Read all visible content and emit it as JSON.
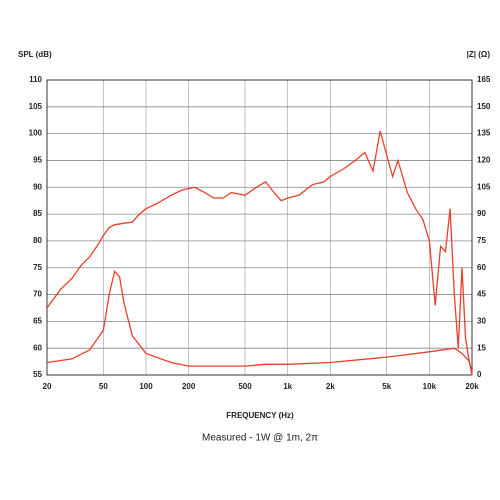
{
  "chart_data": {
    "type": "line",
    "ylabel": "SPL (dB)",
    "y2label": "|Z| (Ω)",
    "xlabel": "FREQUENCY (Hz)",
    "subtitle": "Measured - 1W @ 1m, 2π",
    "xlog": true,
    "grid": true,
    "xlim": [
      20,
      20000
    ],
    "xticks": [
      20,
      50,
      100,
      200,
      500,
      {
        "value": 1000,
        "label": "1k"
      },
      {
        "value": 2000,
        "label": "2k"
      },
      {
        "value": 5000,
        "label": "5k"
      },
      {
        "value": 10000,
        "label": "10k"
      },
      {
        "value": 20000,
        "label": "20k"
      }
    ],
    "ylim": [
      55,
      110
    ],
    "yticks": [
      55,
      60,
      65,
      70,
      75,
      80,
      85,
      90,
      95,
      100,
      105,
      110
    ],
    "y2lim": [
      0,
      165
    ],
    "y2ticks": [
      0,
      15,
      30,
      45,
      60,
      75,
      90,
      105,
      120,
      135,
      150,
      165
    ],
    "series": [
      {
        "color": "#e8402a",
        "x": [
          20,
          25,
          30,
          35,
          40,
          45,
          50,
          55,
          60,
          70,
          80,
          90,
          100,
          120,
          150,
          180,
          220,
          260,
          300,
          350,
          400,
          500,
          600,
          700,
          800,
          900,
          1000,
          1200,
          1500,
          1800,
          2000,
          2500,
          3000,
          3500,
          4000,
          4500,
          5000,
          5500,
          6000,
          7000,
          8000,
          9000,
          10000,
          11000,
          12000,
          13000,
          14000,
          15000,
          16000,
          17000,
          18000,
          19000,
          20000
        ],
        "values": [
          67.5,
          71,
          73,
          75.5,
          77,
          79,
          81,
          82.5,
          83,
          83.3,
          83.5,
          85,
          86,
          87,
          88.5,
          89.5,
          90,
          89,
          88,
          88,
          89,
          88.5,
          90,
          91,
          89,
          87.5,
          88,
          88.5,
          90.5,
          91,
          92,
          93.5,
          95,
          96.5,
          93,
          100.5,
          96,
          92,
          95,
          89,
          86,
          84,
          80,
          68,
          79,
          78,
          86,
          70,
          60,
          75,
          62,
          58,
          55
        ]
      },
      {
        "color": "#e8402a",
        "axis": "y2",
        "x": [
          20,
          30,
          40,
          50,
          55,
          60,
          65,
          70,
          80,
          100,
          150,
          200,
          500,
          700,
          1000,
          2000,
          5000,
          10000,
          15000,
          17000,
          19000,
          20000
        ],
        "values": [
          7,
          9,
          14,
          25,
          45,
          58,
          55,
          40,
          22,
          12,
          7,
          5,
          5,
          6,
          6,
          7,
          10,
          13,
          15,
          12,
          8,
          2
        ]
      }
    ]
  }
}
